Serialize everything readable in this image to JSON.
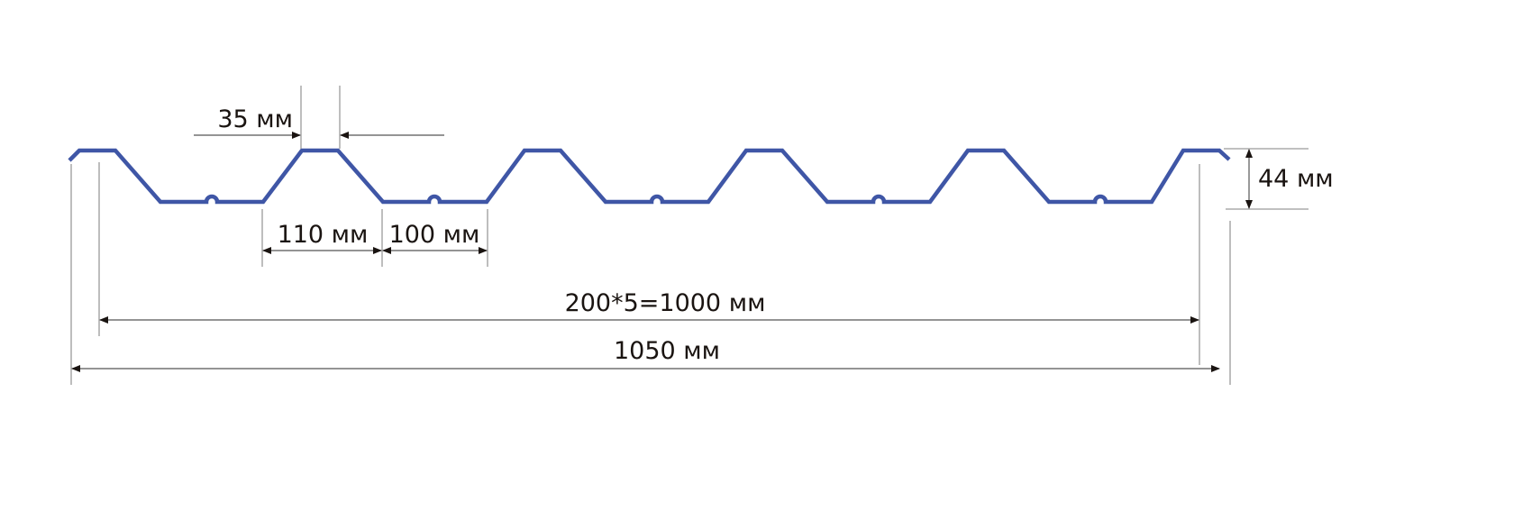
{
  "diagram": {
    "profile_color": "#3f56a6",
    "labels": {
      "crest_width": "35 мм",
      "rib_base": "110 мм",
      "valley_width": "100 мм",
      "pitch_total": "200*5=1000 мм",
      "total_width": "1050 мм",
      "height": "44 мм"
    }
  }
}
